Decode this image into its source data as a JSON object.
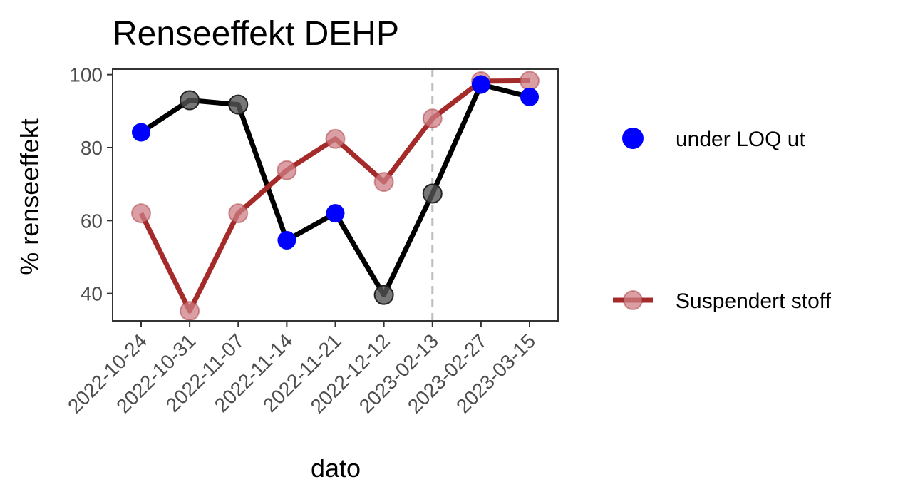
{
  "chart_data": {
    "type": "line",
    "title": "Renseeffekt DEHP",
    "xlabel": "dato",
    "ylabel": "% renseeffekt",
    "categories": [
      "2022-10-24",
      "2022-10-31",
      "2022-11-07",
      "2022-11-14",
      "2022-11-21",
      "2022-12-12",
      "2023-02-13",
      "2023-02-27",
      "2023-03-15"
    ],
    "ylim": [
      32.5,
      101.5
    ],
    "yticks": [
      40,
      60,
      80,
      100
    ],
    "grid": false,
    "vline": {
      "x": "2023-02-13",
      "style": "dashed",
      "color": "#bdbdbd"
    },
    "series": [
      {
        "values": [
          84.2,
          93.0,
          91.8,
          54.6,
          62.0,
          39.6,
          67.4,
          97.3,
          93.9
        ],
        "line_color": "#000000",
        "point_color": "#555555",
        "below_loq": [
          true,
          false,
          false,
          true,
          true,
          false,
          false,
          true,
          true
        ]
      },
      {
        "name": "Suspendert stoff",
        "values": [
          62.0,
          35.2,
          62.0,
          73.8,
          82.4,
          70.6,
          88.0,
          98.2,
          98.3
        ],
        "line_color": "#a52a2a",
        "point_color": "#cd7f86"
      }
    ],
    "legend": {
      "position": "right",
      "items": [
        {
          "label": "under LOQ ut",
          "color": "#0000ff",
          "kind": "point"
        },
        {
          "label": "Suspendert stoff",
          "color": "#a52a2a",
          "kind": "line-point"
        }
      ]
    }
  }
}
